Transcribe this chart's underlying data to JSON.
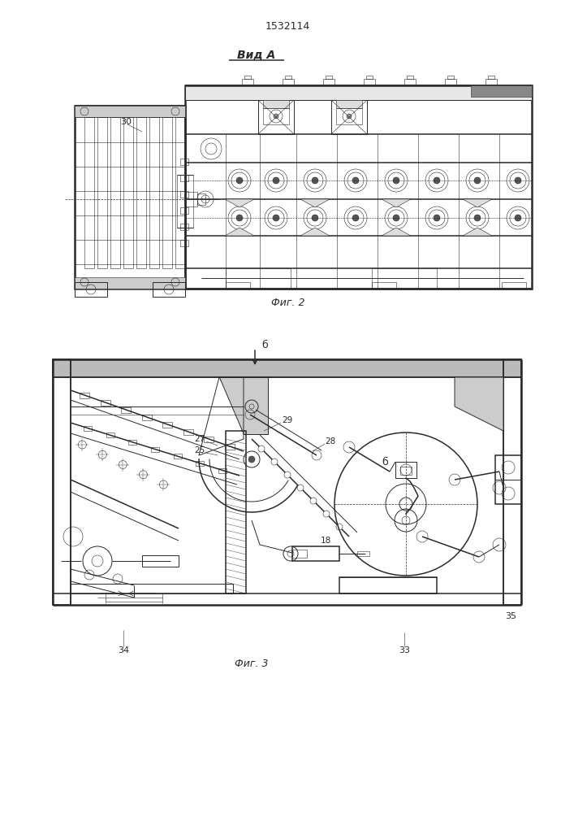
{
  "title": "1532114",
  "bg_color": "#ffffff",
  "line_color": "#2a2a2a",
  "fig_width": 7.07,
  "fig_height": 10.0,
  "label_vid_a": "Вид А",
  "label_fig2": "Фиг. 2",
  "label_fig3": "Фиг. 3",
  "label_30": "30",
  "label_27": "27",
  "label_25": "25",
  "label_29": "29",
  "label_28": "28",
  "label_b_arrow": "б",
  "label_b_circle": "б",
  "label_18": "18",
  "label_33": "33",
  "label_34": "34",
  "label_35": "35"
}
